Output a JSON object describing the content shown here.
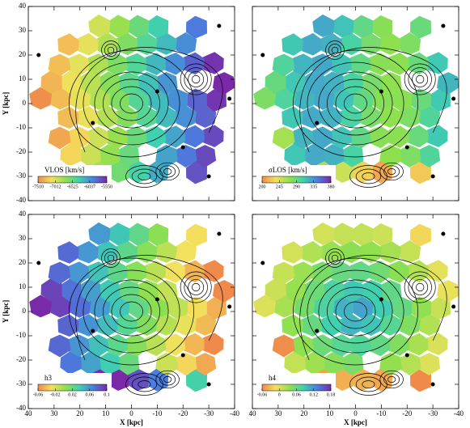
{
  "chart_data": [
    {
      "type": "map",
      "xlim": [
        40,
        -40
      ],
      "ylim": [
        -40,
        40
      ],
      "xticks": [
        40,
        30,
        20,
        10,
        0,
        -10,
        -20,
        -30,
        -40
      ],
      "yticks": [
        -40,
        -30,
        -20,
        -10,
        0,
        10,
        20,
        30,
        40
      ],
      "y_label": "Y [kpc]",
      "colorbar_label": "VLOS [km/s]",
      "colorbar_ticks": [
        -7510,
        -7012,
        -6525,
        -6037,
        -5550
      ],
      "colormap": [
        "#f08a4b",
        "#f3e15c",
        "#8fe04f",
        "#3fd0b0",
        "#4a7fe0",
        "#7a2aa8"
      ]
    },
    {
      "type": "map",
      "xlim": [
        40,
        -40
      ],
      "ylim": [
        -40,
        40
      ],
      "xticks": [
        40,
        30,
        20,
        10,
        0,
        -10,
        -20,
        -30,
        -40
      ],
      "yticks": [
        -40,
        -30,
        -20,
        -10,
        0,
        10,
        20,
        30,
        40
      ],
      "colorbar_label": "σLOS [km/s]",
      "colorbar_ticks": [
        200,
        245,
        290,
        335,
        380
      ],
      "colormap": [
        "#f08a4b",
        "#f3e15c",
        "#8fe04f",
        "#3fd0b0",
        "#4a7fe0",
        "#7a2aa8"
      ]
    },
    {
      "type": "map",
      "xlim": [
        40,
        -40
      ],
      "ylim": [
        -40,
        40
      ],
      "xticks": [
        40,
        30,
        20,
        10,
        0,
        -10,
        -20,
        -30,
        -40
      ],
      "yticks": [
        -40,
        -30,
        -20,
        -10,
        0,
        10,
        20,
        30,
        40
      ],
      "x_label": "X [kpc]",
      "y_label": "Y [kpc]",
      "colorbar_label": "h3",
      "colorbar_ticks": [
        -0.06,
        -0.02,
        0.02,
        0.06,
        0.1
      ],
      "colormap": [
        "#f08a4b",
        "#f3e15c",
        "#8fe04f",
        "#3fd0b0",
        "#4a7fe0",
        "#7a2aa8"
      ]
    },
    {
      "type": "map",
      "xlim": [
        40,
        -40
      ],
      "ylim": [
        -40,
        40
      ],
      "xticks": [
        40,
        30,
        20,
        10,
        0,
        -10,
        -20,
        -30,
        -40
      ],
      "yticks": [
        -40,
        -30,
        -20,
        -10,
        0,
        10,
        20,
        30,
        40
      ],
      "x_label": "X [kpc]",
      "colorbar_label": "h4",
      "colorbar_ticks": [
        -0.06,
        0,
        0.06,
        0.12,
        0.18
      ],
      "colormap": [
        "#f08a4b",
        "#f3e15c",
        "#8fe04f",
        "#3fd0b0",
        "#4a7fe0",
        "#7a2aa8"
      ]
    }
  ]
}
